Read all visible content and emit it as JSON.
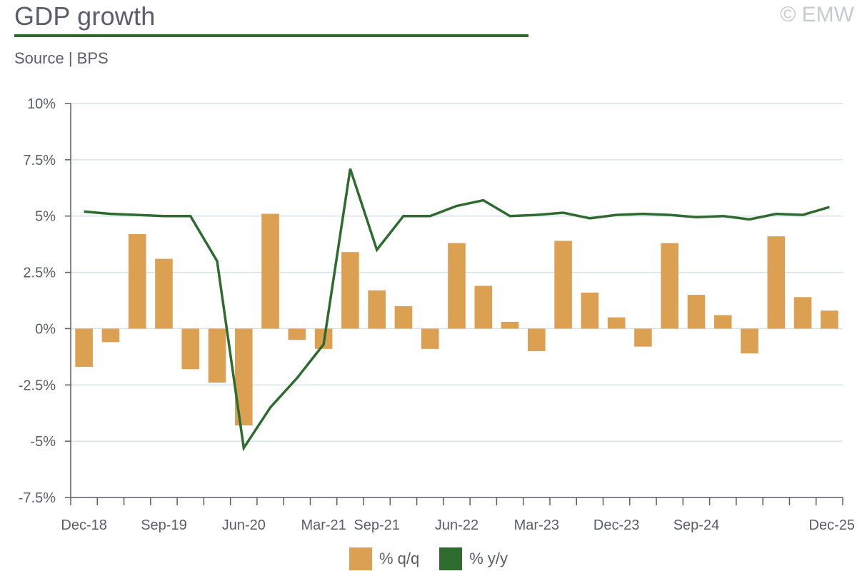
{
  "header": {
    "title": "GDP growth",
    "source": "Source | BPS",
    "copyright": "© EMW"
  },
  "colors": {
    "bar": "#dba052",
    "line": "#2e6b2e",
    "grid": "#d6e2ec",
    "axis": "#5a5e6b"
  },
  "chart_data": {
    "type": "bar",
    "title": "GDP growth",
    "xlabel": "",
    "ylabel": "",
    "ylim": [
      -7.5,
      10
    ],
    "y_ticks": [
      {
        "value": 10,
        "label": "10%"
      },
      {
        "value": 7.5,
        "label": "7.5%"
      },
      {
        "value": 5,
        "label": "5%"
      },
      {
        "value": 2.5,
        "label": "2.5%"
      },
      {
        "value": 0,
        "label": "0%"
      },
      {
        "value": -2.5,
        "label": "-2.5%"
      },
      {
        "value": -5,
        "label": "-5%"
      },
      {
        "value": -7.5,
        "label": "-7.5%"
      }
    ],
    "categories": [
      "Dec-18",
      "Mar-19",
      "Jun-19",
      "Sep-19",
      "Dec-19",
      "Mar-20",
      "Jun-20",
      "Sep-20",
      "Dec-20",
      "Mar-21",
      "Jun-21",
      "Sep-21",
      "Dec-21",
      "Mar-22",
      "Jun-22",
      "Sep-22",
      "Dec-22",
      "Mar-23",
      "Jun-23",
      "Sep-23",
      "Dec-23",
      "Mar-24",
      "Jun-24",
      "Sep-24",
      "Dec-24",
      "Mar-25",
      "Jun-25",
      "Sep-25",
      "Dec-25"
    ],
    "x_tick_labels": [
      {
        "index": 0,
        "label": "Dec-18"
      },
      {
        "index": 3,
        "label": "Sep-19"
      },
      {
        "index": 6,
        "label": "Jun-20"
      },
      {
        "index": 9,
        "label": "Mar-21"
      },
      {
        "index": 11,
        "label": "Sep-21"
      },
      {
        "index": 14,
        "label": "Jun-22"
      },
      {
        "index": 17,
        "label": "Mar-23"
      },
      {
        "index": 20,
        "label": "Dec-23"
      },
      {
        "index": 23,
        "label": "Sep-24"
      },
      {
        "index": 28,
        "label": "Dec-25"
      }
    ],
    "series": [
      {
        "name": "% q/q",
        "type": "bar",
        "values": [
          -1.7,
          -0.6,
          4.2,
          3.1,
          -1.8,
          -2.4,
          -4.3,
          5.1,
          -0.5,
          -0.9,
          3.4,
          1.7,
          1.0,
          -0.9,
          3.8,
          1.9,
          0.3,
          -1.0,
          3.9,
          1.6,
          0.5,
          -0.8,
          3.8,
          1.5,
          0.6,
          -1.1,
          4.1,
          1.4,
          0.8
        ]
      },
      {
        "name": "% y/y",
        "type": "line",
        "values": [
          5.2,
          5.1,
          5.05,
          5.0,
          5.0,
          3.0,
          -5.3,
          -3.5,
          -2.2,
          -0.7,
          7.1,
          3.5,
          5.0,
          5.0,
          5.45,
          5.7,
          5.0,
          5.05,
          5.15,
          4.9,
          5.05,
          5.1,
          5.05,
          4.95,
          5.0,
          4.85,
          5.1,
          5.05,
          5.4
        ]
      }
    ],
    "legend": "bottom-center",
    "grid": true
  }
}
